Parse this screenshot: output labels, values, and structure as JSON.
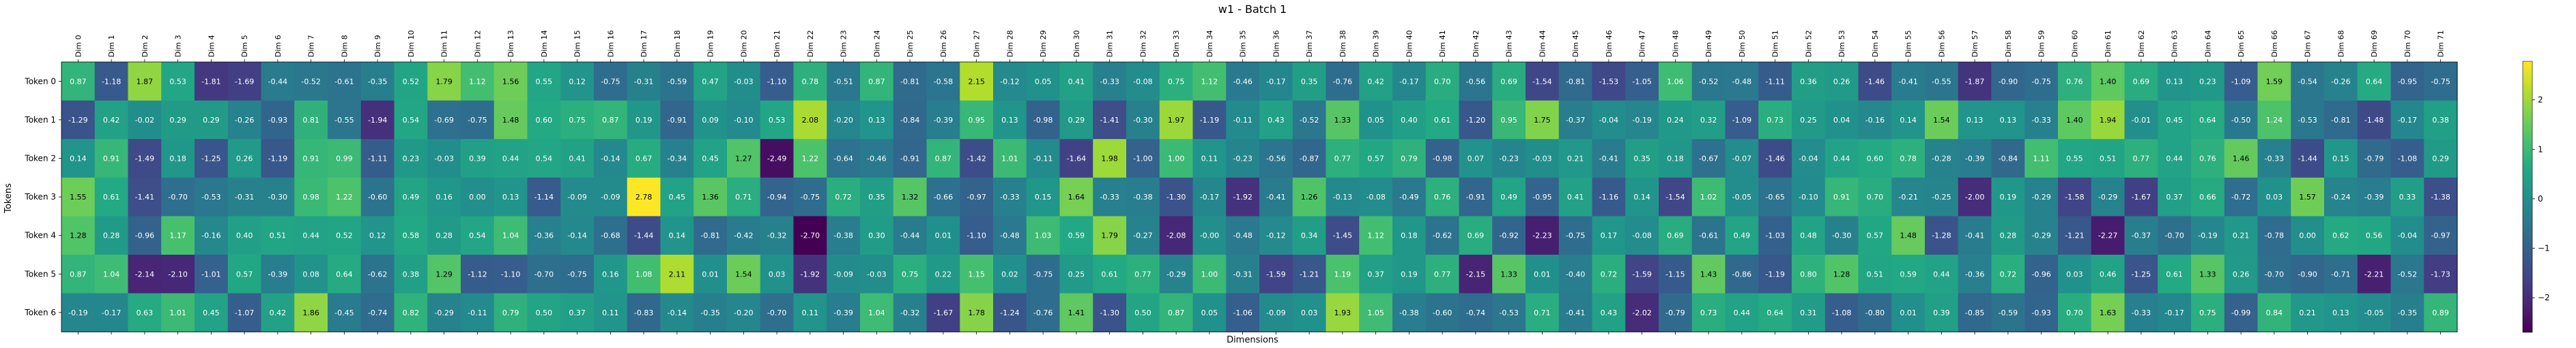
{
  "chart_data": {
    "type": "heatmap",
    "title": "w1 - Batch 1",
    "xlabel": "Dimensions",
    "ylabel": "Tokens",
    "x_labels": [
      "Dim 0",
      "Dim 1",
      "Dim 2",
      "Dim 3",
      "Dim 4",
      "Dim 5",
      "Dim 6",
      "Dim 7",
      "Dim 8",
      "Dim 9",
      "Dim 10",
      "Dim 11",
      "Dim 12",
      "Dim 13",
      "Dim 14",
      "Dim 15",
      "Dim 16",
      "Dim 17",
      "Dim 18",
      "Dim 19",
      "Dim 20",
      "Dim 21",
      "Dim 22",
      "Dim 23",
      "Dim 24",
      "Dim 25",
      "Dim 26",
      "Dim 27",
      "Dim 28",
      "Dim 29",
      "Dim 30",
      "Dim 31",
      "Dim 32",
      "Dim 33",
      "Dim 34",
      "Dim 35",
      "Dim 36",
      "Dim 37",
      "Dim 38",
      "Dim 39",
      "Dim 40",
      "Dim 41",
      "Dim 42",
      "Dim 43",
      "Dim 44",
      "Dim 45",
      "Dim 46",
      "Dim 47",
      "Dim 48",
      "Dim 49",
      "Dim 50",
      "Dim 51",
      "Dim 52",
      "Dim 53",
      "Dim 54",
      "Dim 55",
      "Dim 56",
      "Dim 57",
      "Dim 58",
      "Dim 59",
      "Dim 60",
      "Dim 61",
      "Dim 62",
      "Dim 63",
      "Dim 64",
      "Dim 65",
      "Dim 66",
      "Dim 67",
      "Dim 68",
      "Dim 69",
      "Dim 70",
      "Dim 71"
    ],
    "y_labels": [
      "Token 0",
      "Token 1",
      "Token 2",
      "Token 3",
      "Token 4",
      "Token 5",
      "Token 6"
    ],
    "values": [
      [
        "0.87",
        "-1.18",
        "1.87",
        "0.53",
        "-1.81",
        "-1.69",
        "-0.44",
        "-0.52",
        "-0.61",
        "-0.35",
        "0.52",
        "1.79",
        "1.12",
        "1.56",
        "0.55",
        "0.12",
        "-0.75",
        "-0.31",
        "-0.59",
        "0.47",
        "-0.03",
        "-1.10",
        "0.78",
        "-0.51",
        "0.87",
        "-0.81",
        "-0.58",
        "2.15",
        "-0.12",
        "0.05",
        "0.41",
        "-0.33",
        "-0.08",
        "0.75",
        "1.12",
        "-0.46",
        "-0.17",
        "0.35",
        "-0.76",
        "0.42",
        "-0.17",
        "0.70",
        "-0.56",
        "0.69",
        "-1.54",
        "-0.81",
        "-1.53",
        "-1.05",
        "1.06",
        "-0.52",
        "-0.48",
        "-1.11",
        "0.36",
        "0.26",
        "-1.46",
        "-0.41",
        "-0.55",
        "-1.87",
        "-0.90",
        "-0.75",
        "0.76",
        "1.40",
        "0.69",
        "0.13",
        "0.23",
        "-1.09",
        "1.59",
        "-0.54",
        "-0.26",
        "0.64",
        "-0.95",
        "-0.75"
      ],
      [
        "-1.29",
        "0.42",
        "-0.02",
        "0.29",
        "0.29",
        "-0.26",
        "-0.93",
        "0.81",
        "-0.55",
        "-1.94",
        "0.54",
        "-0.69",
        "-0.75",
        "1.48",
        "0.60",
        "0.75",
        "0.87",
        "0.19",
        "-0.91",
        "0.09",
        "-0.10",
        "0.53",
        "2.08",
        "-0.20",
        "0.13",
        "-0.84",
        "-0.39",
        "0.95",
        "0.13",
        "-0.98",
        "0.29",
        "-1.41",
        "-0.30",
        "1.97",
        "-1.19",
        "-0.11",
        "0.43",
        "-0.52",
        "1.33",
        "0.05",
        "0.40",
        "0.61",
        "-1.20",
        "0.95",
        "1.75",
        "-0.37",
        "-0.04",
        "-0.19",
        "0.24",
        "0.32",
        "-1.09",
        "0.73",
        "0.25",
        "0.04",
        "-0.16",
        "0.14",
        "1.54",
        "0.13",
        "0.13",
        "-0.33",
        "1.40",
        "1.94",
        "-0.01",
        "0.45",
        "0.64",
        "-0.50",
        "1.24",
        "-0.53",
        "-0.81",
        "-1.48",
        "-0.17",
        "0.38"
      ],
      [
        "0.14",
        "0.91",
        "-1.49",
        "0.18",
        "-1.25",
        "0.26",
        "-1.19",
        "0.91",
        "0.99",
        "-1.11",
        "0.23",
        "-0.03",
        "0.39",
        "0.44",
        "0.54",
        "0.41",
        "-0.14",
        "0.67",
        "-0.34",
        "0.45",
        "1.27",
        "-2.49",
        "1.22",
        "-0.64",
        "-0.46",
        "-0.91",
        "0.87",
        "-1.42",
        "1.01",
        "-0.11",
        "-1.64",
        "1.98",
        "-1.00",
        "1.00",
        "0.11",
        "-0.23",
        "-0.56",
        "-0.87",
        "0.77",
        "0.57",
        "0.79",
        "-0.98",
        "0.07",
        "-0.23",
        "-0.03",
        "0.21",
        "-0.41",
        "0.35",
        "0.18",
        "-0.67",
        "-0.07",
        "-1.46",
        "-0.04",
        "0.44",
        "0.60",
        "0.78",
        "-0.28",
        "-0.39",
        "-0.84",
        "1.11",
        "0.55",
        "0.51",
        "0.77",
        "0.44",
        "0.76",
        "1.46",
        "-0.33",
        "-1.44",
        "0.15",
        "-0.79",
        "-1.08",
        "0.29"
      ],
      [
        "1.55",
        "0.61",
        "-1.41",
        "-0.70",
        "-0.53",
        "-0.31",
        "-0.30",
        "0.98",
        "1.22",
        "-0.60",
        "0.49",
        "0.16",
        "0.00",
        "0.13",
        "-1.14",
        "-0.09",
        "-0.09",
        "2.78",
        "0.45",
        "1.36",
        "0.71",
        "-0.94",
        "-0.75",
        "0.72",
        "0.35",
        "1.32",
        "-0.66",
        "-0.97",
        "-0.33",
        "0.15",
        "1.64",
        "-0.33",
        "-0.38",
        "-1.30",
        "-0.17",
        "-1.92",
        "-0.41",
        "1.26",
        "-0.13",
        "-0.08",
        "-0.49",
        "0.76",
        "-0.91",
        "0.49",
        "-0.95",
        "0.41",
        "-1.16",
        "0.14",
        "-1.54",
        "1.02",
        "-0.05",
        "-0.65",
        "-0.10",
        "0.91",
        "0.70",
        "-0.21",
        "-0.25",
        "-2.00",
        "0.19",
        "-0.29",
        "-1.58",
        "-0.29",
        "-1.67",
        "0.37",
        "0.66",
        "-0.72",
        "0.03",
        "1.57",
        "-0.24",
        "-0.39",
        "0.33",
        "-1.38"
      ],
      [
        "1.28",
        "0.28",
        "-0.96",
        "1.17",
        "-0.16",
        "0.40",
        "0.51",
        "0.44",
        "0.52",
        "0.12",
        "0.58",
        "0.28",
        "0.54",
        "1.04",
        "-0.36",
        "-0.14",
        "-0.68",
        "-1.44",
        "0.14",
        "-0.81",
        "-0.42",
        "-0.32",
        "-2.70",
        "-0.38",
        "0.30",
        "-0.44",
        "0.01",
        "-1.10",
        "-0.48",
        "1.03",
        "0.59",
        "1.79",
        "-0.27",
        "-2.08",
        "-0.00",
        "-0.48",
        "-0.12",
        "0.34",
        "-1.45",
        "1.12",
        "0.18",
        "-0.62",
        "0.69",
        "-0.92",
        "-2.23",
        "-0.75",
        "0.17",
        "-0.08",
        "0.69",
        "-0.61",
        "0.49",
        "-1.03",
        "0.48",
        "-0.30",
        "0.57",
        "1.48",
        "-1.28",
        "-0.41",
        "0.28",
        "-0.29",
        "-1.21",
        "-2.27",
        "-0.37",
        "-0.70",
        "-0.19",
        "0.21",
        "-0.78",
        "0.00",
        "0.62",
        "0.56",
        "-0.04",
        "-0.97"
      ],
      [
        "0.87",
        "1.04",
        "-2.14",
        "-2.10",
        "-1.01",
        "0.57",
        "-0.39",
        "0.08",
        "0.64",
        "-0.62",
        "0.38",
        "1.29",
        "-1.12",
        "-1.10",
        "-0.70",
        "-0.75",
        "0.16",
        "1.08",
        "2.11",
        "0.01",
        "1.54",
        "0.03",
        "-1.92",
        "-0.09",
        "-0.03",
        "0.75",
        "0.22",
        "1.15",
        "0.02",
        "-0.75",
        "0.25",
        "0.61",
        "0.77",
        "-0.29",
        "1.00",
        "-0.31",
        "-1.59",
        "-1.21",
        "1.19",
        "0.37",
        "0.19",
        "0.77",
        "-2.15",
        "1.33",
        "0.01",
        "-0.40",
        "0.72",
        "-1.59",
        "-1.15",
        "1.43",
        "-0.86",
        "-1.19",
        "0.80",
        "1.28",
        "0.51",
        "0.59",
        "0.44",
        "-0.36",
        "0.72",
        "-0.96",
        "0.03",
        "0.46",
        "-1.25",
        "0.61",
        "1.33",
        "0.26",
        "-0.70",
        "-0.90",
        "-0.71",
        "-2.21",
        "-0.52",
        "-1.73"
      ],
      [
        "-0.19",
        "-0.17",
        "0.63",
        "1.01",
        "0.45",
        "-1.07",
        "0.42",
        "1.86",
        "-0.45",
        "-0.74",
        "0.82",
        "-0.29",
        "-0.11",
        "0.79",
        "0.50",
        "0.37",
        "0.11",
        "-0.83",
        "-0.14",
        "-0.35",
        "-0.20",
        "-0.70",
        "0.11",
        "-0.39",
        "1.04",
        "-0.32",
        "-1.67",
        "1.78",
        "-1.24",
        "-0.76",
        "1.41",
        "-1.30",
        "0.50",
        "0.87",
        "0.05",
        "-1.06",
        "-0.09",
        "0.03",
        "1.93",
        "1.05",
        "-0.38",
        "-0.60",
        "-0.74",
        "-0.53",
        "0.71",
        "-0.41",
        "0.43",
        "-2.02",
        "-0.79",
        "0.73",
        "0.44",
        "0.64",
        "0.31",
        "-1.08",
        "-0.80",
        "0.01",
        "0.39",
        "-0.85",
        "-0.59",
        "-0.93",
        "0.70",
        "1.63",
        "-0.33",
        "-0.17",
        "0.75",
        "-0.99",
        "0.84",
        "0.21",
        "0.13",
        "-0.05",
        "-0.35",
        "0.89"
      ]
    ],
    "vmin": -2.7,
    "vmax": 2.78,
    "colormap": "viridis",
    "colorbar_ticks": [
      "2",
      "1",
      "0",
      "−1",
      "−2"
    ]
  }
}
